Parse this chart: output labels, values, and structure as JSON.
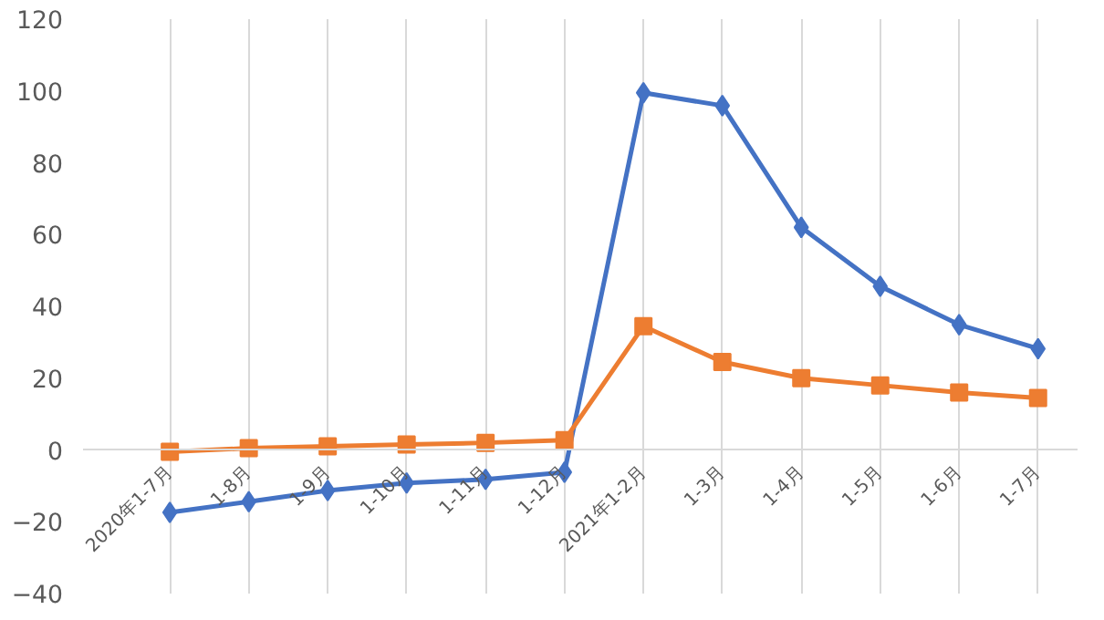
{
  "chart_data": {
    "type": "line",
    "categories": [
      "2020年1-7月",
      "1-8月",
      "1-9月",
      "1-10月",
      "1-11月",
      "1-12月",
      "2021年1-2月",
      "1-3月",
      "1-4月",
      "1-5月",
      "1-6月",
      "1-7月"
    ],
    "series": [
      {
        "color": "#4472c4",
        "marker": "diamond",
        "values": [
          -17.4,
          -14.4,
          -11.3,
          -9.2,
          -8.2,
          -6.2,
          99.5,
          95.9,
          62,
          45.6,
          34.9,
          28.2
        ]
      },
      {
        "color": "#ed7d31",
        "marker": "square",
        "values": [
          -0.5,
          0.5,
          1.0,
          1.5,
          2.0,
          2.7,
          34.5,
          24.5,
          20,
          18,
          16,
          14.5
        ]
      }
    ],
    "ylim": [
      -40,
      120
    ],
    "yticks": [
      -40,
      -20,
      0,
      20,
      40,
      60,
      80,
      100,
      120
    ],
    "grid": "x",
    "line_style": "solid"
  }
}
